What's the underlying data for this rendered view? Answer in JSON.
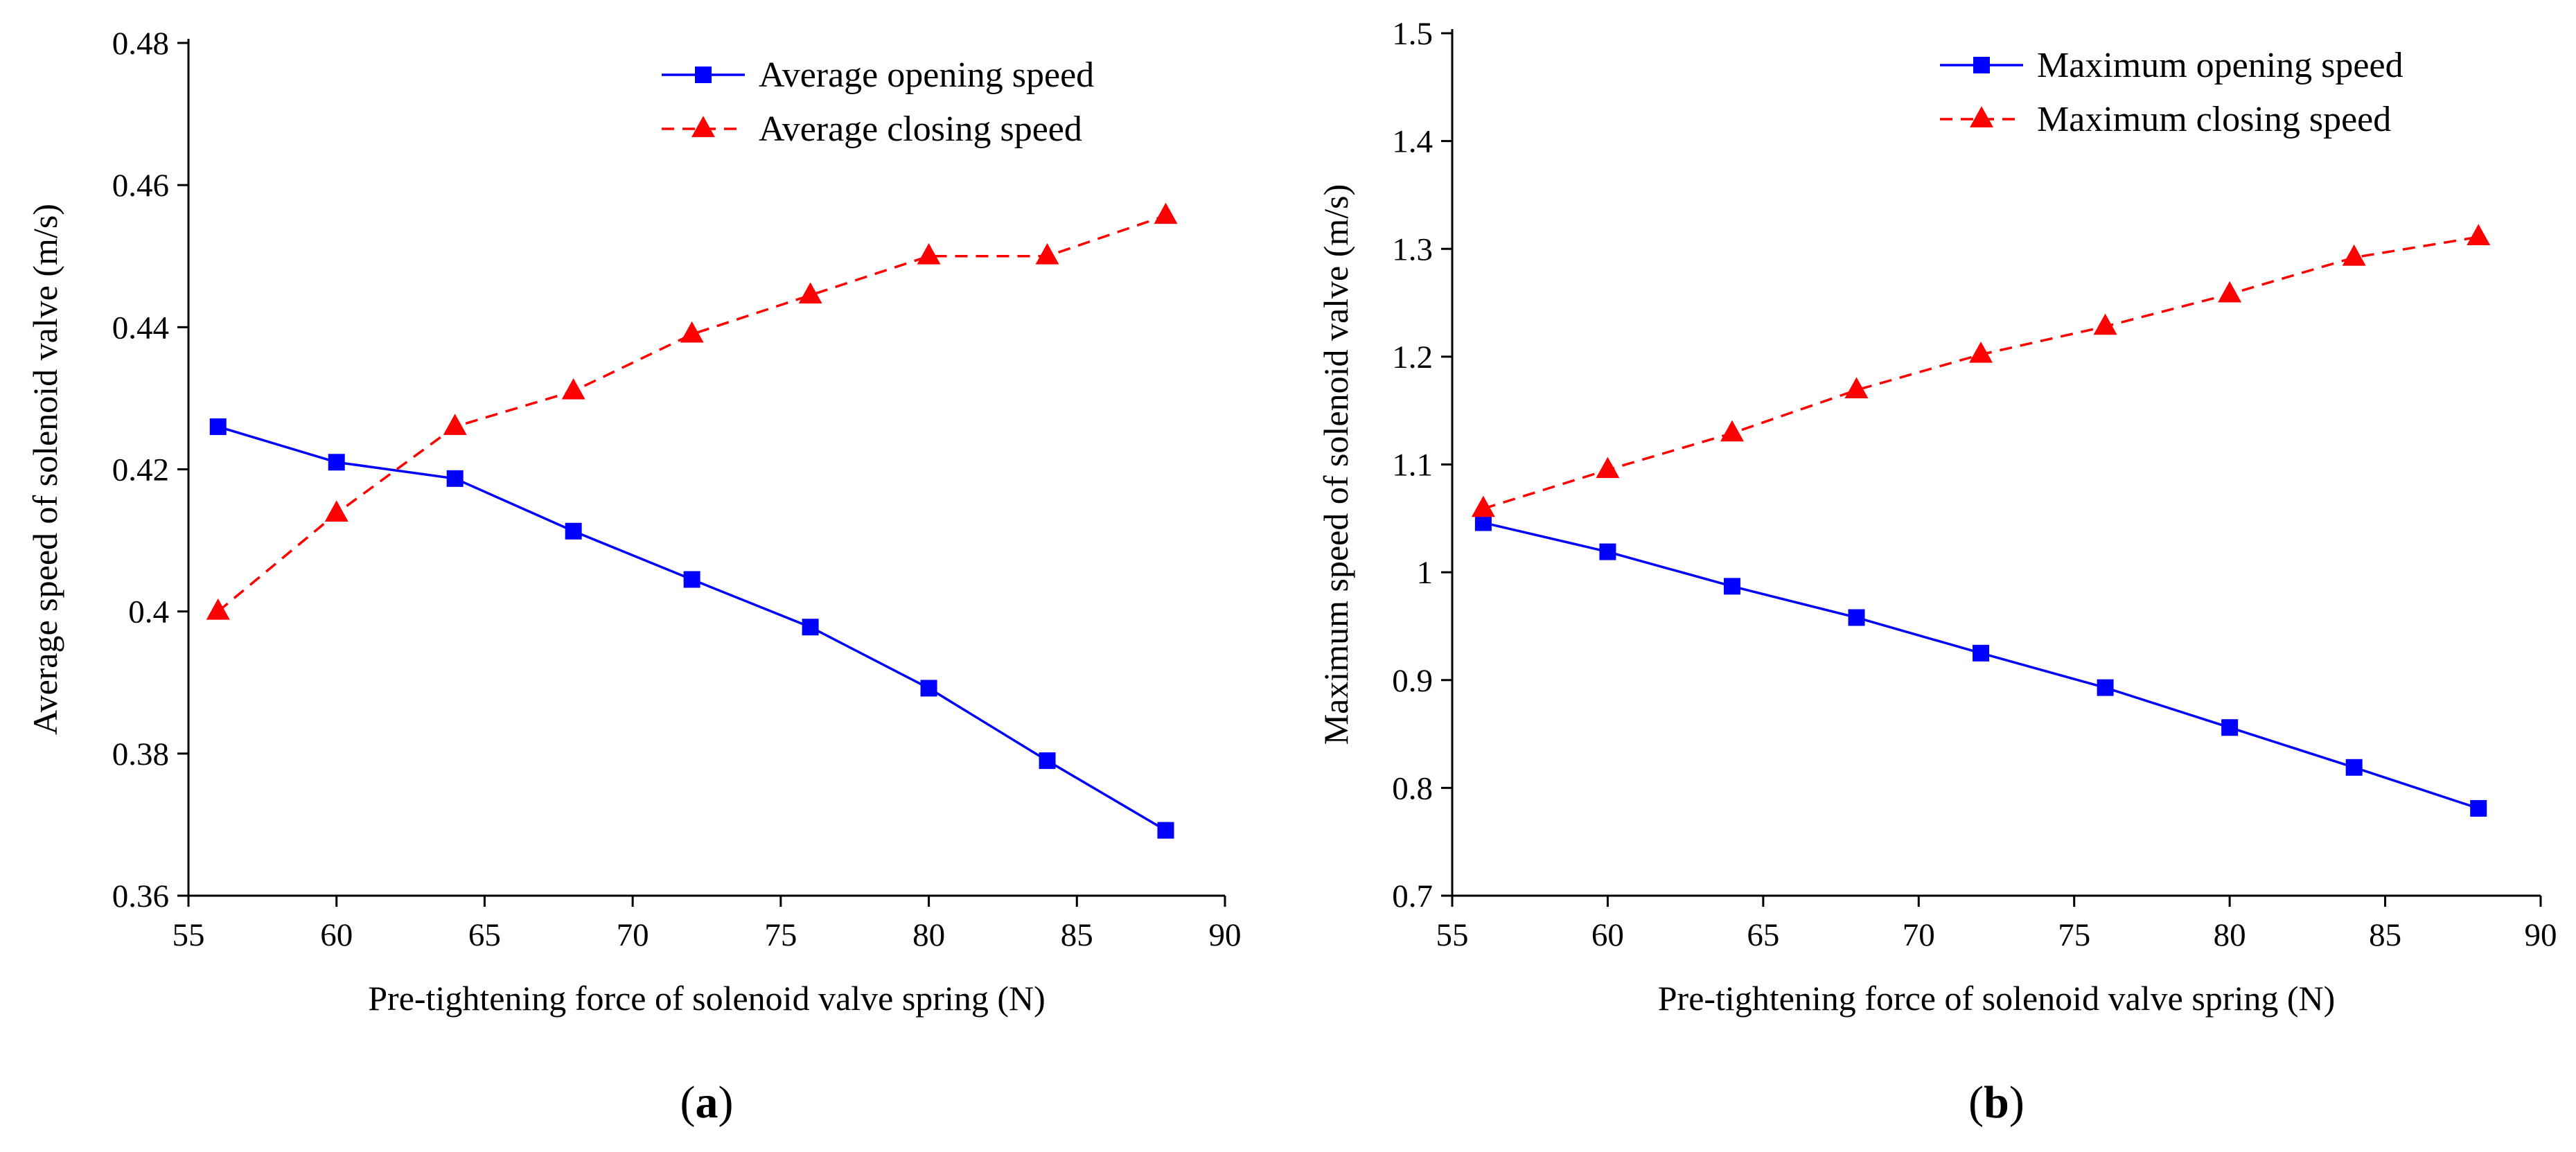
{
  "chart_data": [
    {
      "panel": "a",
      "type": "line",
      "panel_label": {
        "open": "(",
        "letter": "a",
        "close": ")"
      },
      "xlabel": "Pre-tightening force of solenoid valve spring (N)",
      "ylabel": "Average speed of solenoid valve (m/s)",
      "xlim": [
        55,
        90
      ],
      "ylim": [
        0.36,
        0.48
      ],
      "xticks": [
        55,
        60,
        65,
        70,
        75,
        80,
        85,
        90
      ],
      "yticks": [
        0.36,
        0.38,
        0.4,
        0.42,
        0.44,
        0.46,
        0.48
      ],
      "xtick_labels": [
        "55",
        "60",
        "65",
        "70",
        "75",
        "80",
        "85",
        "90"
      ],
      "ytick_labels": [
        "0.36",
        "0.38",
        "0.4",
        "0.42",
        "0.44",
        "0.46",
        "0.48"
      ],
      "legend_position": "top-right",
      "x": [
        56,
        60,
        64,
        68,
        72,
        76,
        80,
        84,
        88
      ],
      "series": [
        {
          "name": "Average opening speed",
          "color": "#0000ff",
          "marker": "square",
          "dash": "solid",
          "values": [
            0.426,
            0.421,
            0.4187,
            0.4113,
            0.4045,
            0.3978,
            0.3892,
            0.379,
            0.3692
          ]
        },
        {
          "name": "Average closing speed",
          "color": "#ff0000",
          "marker": "triangle",
          "dash": "dashed",
          "values": [
            0.4,
            0.4138,
            0.426,
            0.431,
            0.439,
            0.4445,
            0.45,
            0.45,
            0.4557
          ]
        }
      ]
    },
    {
      "panel": "b",
      "type": "line",
      "panel_label": {
        "open": "(",
        "letter": "b",
        "close": ")"
      },
      "xlabel": "Pre-tightening force of solenoid valve spring (N)",
      "ylabel": "Maximum speed of solenoid valve (m/s)",
      "xlim": [
        55,
        90
      ],
      "ylim": [
        0.7,
        1.5
      ],
      "xticks": [
        55,
        60,
        65,
        70,
        75,
        80,
        85,
        90
      ],
      "yticks": [
        0.7,
        0.8,
        0.9,
        1.0,
        1.1,
        1.2,
        1.3,
        1.4,
        1.5
      ],
      "xtick_labels": [
        "55",
        "60",
        "65",
        "70",
        "75",
        "80",
        "85",
        "90"
      ],
      "ytick_labels": [
        "0.7",
        "0.8",
        "0.9",
        "1",
        "1.1",
        "1.2",
        "1.3",
        "1.4",
        "1.5"
      ],
      "legend_position": "top-right",
      "x": [
        56,
        60,
        64,
        68,
        72,
        76,
        80,
        84,
        88
      ],
      "series": [
        {
          "name": "Maximum opening speed",
          "color": "#0000ff",
          "marker": "square",
          "dash": "solid",
          "values": [
            1.046,
            1.019,
            0.987,
            0.958,
            0.925,
            0.893,
            0.856,
            0.819,
            0.781
          ]
        },
        {
          "name": "Maximum closing speed",
          "color": "#ff0000",
          "marker": "triangle",
          "dash": "dashed",
          "values": [
            1.059,
            1.095,
            1.129,
            1.169,
            1.202,
            1.228,
            1.258,
            1.292,
            1.311
          ]
        }
      ]
    }
  ]
}
